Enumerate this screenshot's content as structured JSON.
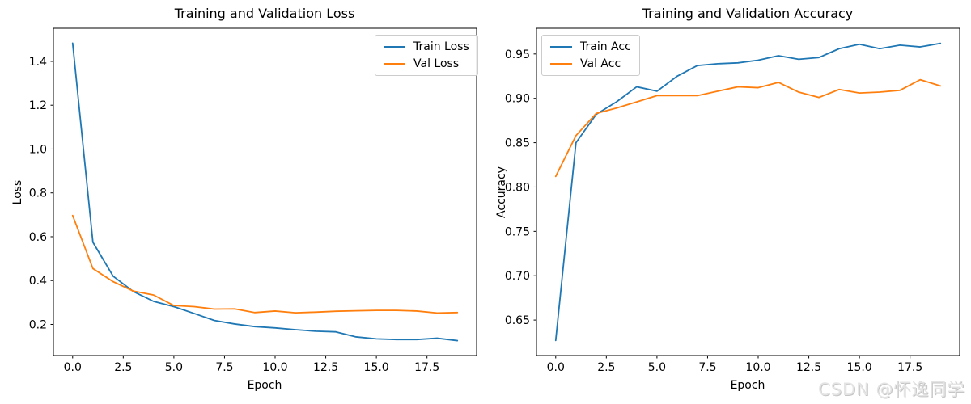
{
  "figure": {
    "background": "#ffffff"
  },
  "watermark": {
    "text": "CSDN @怀逸同学"
  },
  "chart_data": [
    {
      "type": "line",
      "title": "Training and Validation Loss",
      "xlabel": "Epoch",
      "ylabel": "Loss",
      "grid": false,
      "legend_position": "upper right",
      "x": [
        0,
        1,
        2,
        3,
        4,
        5,
        6,
        7,
        8,
        9,
        10,
        11,
        12,
        13,
        14,
        15,
        16,
        17,
        18,
        19
      ],
      "xlim": [
        -0.95,
        19.95
      ],
      "ylim": [
        0.058,
        1.551
      ],
      "xticks": {
        "values": [
          0,
          2.5,
          5,
          7.5,
          10,
          12.5,
          15,
          17.5
        ],
        "labels": [
          "0.0",
          "2.5",
          "5.0",
          "7.5",
          "10.0",
          "12.5",
          "15.0",
          "17.5"
        ]
      },
      "yticks": {
        "values": [
          0.2,
          0.4,
          0.6,
          0.8,
          1.0,
          1.2,
          1.4
        ],
        "labels": [
          "0.2",
          "0.4",
          "0.6",
          "0.8",
          "1.0",
          "1.2",
          "1.4"
        ]
      },
      "series": [
        {
          "name": "Train Loss",
          "color": "#1f77b4",
          "values": [
            1.483,
            0.575,
            0.42,
            0.35,
            0.305,
            0.281,
            0.25,
            0.218,
            0.202,
            0.19,
            0.184,
            0.176,
            0.169,
            0.166,
            0.143,
            0.134,
            0.131,
            0.131,
            0.137,
            0.126
          ]
        },
        {
          "name": "Val Loss",
          "color": "#ff7f0e",
          "values": [
            0.697,
            0.455,
            0.395,
            0.352,
            0.334,
            0.286,
            0.281,
            0.27,
            0.271,
            0.254,
            0.261,
            0.253,
            0.256,
            0.26,
            0.262,
            0.264,
            0.264,
            0.261,
            0.252,
            0.254
          ]
        }
      ]
    },
    {
      "type": "line",
      "title": "Training and Validation Accuracy",
      "xlabel": "Epoch",
      "ylabel": "Accuracy",
      "grid": false,
      "legend_position": "upper left",
      "x": [
        0,
        1,
        2,
        3,
        4,
        5,
        6,
        7,
        8,
        9,
        10,
        11,
        12,
        13,
        14,
        15,
        16,
        17,
        18,
        19
      ],
      "xlim": [
        -0.95,
        19.95
      ],
      "ylim": [
        0.61,
        0.979
      ],
      "xticks": {
        "values": [
          0,
          2.5,
          5,
          7.5,
          10,
          12.5,
          15,
          17.5
        ],
        "labels": [
          "0.0",
          "2.5",
          "5.0",
          "7.5",
          "10.0",
          "12.5",
          "15.0",
          "17.5"
        ]
      },
      "yticks": {
        "values": [
          0.65,
          0.7,
          0.75,
          0.8,
          0.85,
          0.9,
          0.95
        ],
        "labels": [
          "0.65",
          "0.70",
          "0.75",
          "0.80",
          "0.85",
          "0.90",
          "0.95"
        ]
      },
      "series": [
        {
          "name": "Train Acc",
          "color": "#1f77b4",
          "values": [
            0.627,
            0.85,
            0.882,
            0.896,
            0.913,
            0.908,
            0.925,
            0.937,
            0.939,
            0.94,
            0.943,
            0.948,
            0.944,
            0.946,
            0.956,
            0.961,
            0.956,
            0.96,
            0.958,
            0.962
          ]
        },
        {
          "name": "Val Acc",
          "color": "#ff7f0e",
          "values": [
            0.812,
            0.858,
            0.883,
            0.889,
            0.896,
            0.903,
            0.903,
            0.903,
            0.908,
            0.913,
            0.912,
            0.918,
            0.907,
            0.901,
            0.91,
            0.906,
            0.907,
            0.909,
            0.921,
            0.914
          ]
        }
      ]
    }
  ]
}
